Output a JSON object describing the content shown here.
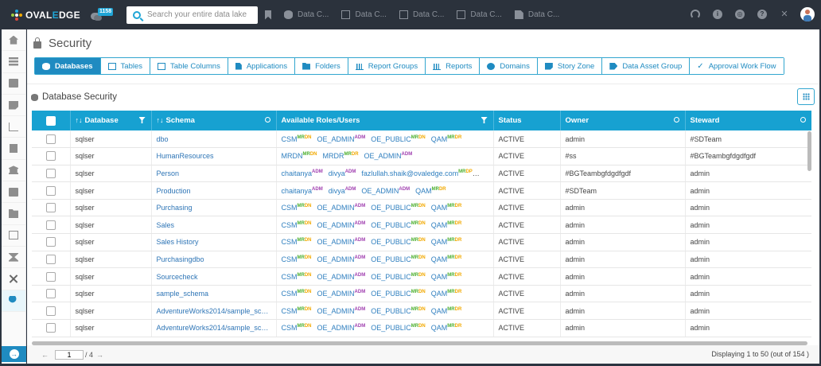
{
  "topbar": {
    "logo": {
      "prefix": "OVAL",
      "highlight": "E",
      "suffix": "DGE"
    },
    "notifications_badge": "1158",
    "search_placeholder": "Search your entire data lake",
    "recent_items": [
      {
        "icon": "database-icon",
        "label": "Data C..."
      },
      {
        "icon": "table-icon",
        "label": "Data C..."
      },
      {
        "icon": "table-columns-icon",
        "label": "Data C..."
      },
      {
        "icon": "report-icon",
        "label": "Data C..."
      },
      {
        "icon": "file-icon",
        "label": "Data C..."
      }
    ],
    "right_icons": [
      "headset-icon",
      "info-icon",
      "chrome-icon",
      "help-icon",
      "expand-icon",
      "user-avatar"
    ]
  },
  "sidebar": {
    "items": [
      "home-icon",
      "list-icon",
      "book-icon",
      "note-icon",
      "chart-icon",
      "clipboard-icon",
      "bank-icon",
      "id-card-icon",
      "folder-icon",
      "table-icon",
      "hourglass-icon",
      "tools-icon",
      "user-security-icon"
    ],
    "active": "user-security-icon",
    "expand_icon": "arrow-right-circle-icon"
  },
  "page": {
    "title": "Security",
    "tabs": [
      {
        "label": "Databases",
        "icon": "db",
        "active": true
      },
      {
        "label": "Tables",
        "icon": "grid"
      },
      {
        "label": "Table Columns",
        "icon": "grid"
      },
      {
        "label": "Applications",
        "icon": "doc"
      },
      {
        "label": "Folders",
        "icon": "folder"
      },
      {
        "label": "Report Groups",
        "icon": "bars"
      },
      {
        "label": "Reports",
        "icon": "bars"
      },
      {
        "label": "Domains",
        "icon": "globe"
      },
      {
        "label": "Story Zone",
        "icon": "story"
      },
      {
        "label": "Data Asset Group",
        "icon": "tag"
      },
      {
        "label": "Approval Work Flow",
        "icon": "check"
      }
    ],
    "section_title": "Database Security"
  },
  "table": {
    "columns": [
      {
        "label": "",
        "type": "checkbox"
      },
      {
        "label": "Database",
        "sortable": true,
        "action": "filter"
      },
      {
        "label": "Schema",
        "sortable": true,
        "action": "search"
      },
      {
        "label": "Available Roles/Users",
        "action": "filter"
      },
      {
        "label": "Status"
      },
      {
        "label": "Owner",
        "action": "search"
      },
      {
        "label": "Steward",
        "action": "search"
      }
    ],
    "sort_glyph": "↑↓",
    "rows": [
      {
        "database": "sqlser",
        "schema": "dbo",
        "roles": [
          [
            "CSM",
            "MR",
            "DN"
          ],
          [
            "OE_ADMIN",
            "",
            "ADM"
          ],
          [
            "OE_PUBLIC",
            "MR",
            "DN"
          ],
          [
            "QAM",
            "MR",
            "DR"
          ]
        ],
        "status": "ACTIVE",
        "owner": "admin",
        "steward": "#SDTeam"
      },
      {
        "database": "sqlser",
        "schema": "HumanResources",
        "roles": [
          [
            "MRDN",
            "MR",
            "DN"
          ],
          [
            "MRDR",
            "MR",
            "DR"
          ],
          [
            "OE_ADMIN",
            "",
            "ADM"
          ]
        ],
        "status": "ACTIVE",
        "owner": "#ss",
        "steward": "#BGTeambgfdgdfgdf"
      },
      {
        "database": "sqlser",
        "schema": "Person",
        "roles": [
          [
            "chaitanya",
            "",
            "ADM"
          ],
          [
            "divya",
            "",
            "ADM"
          ],
          [
            "fazlullah.shaik@ovaledge.com",
            "MR",
            "DP"
          ],
          [
            "OE_A...",
            "",
            ""
          ]
        ],
        "status": "ACTIVE",
        "owner": "#BGTeambgfdgdfgdf",
        "steward": "admin"
      },
      {
        "database": "sqlser",
        "schema": "Production",
        "roles": [
          [
            "chaitanya",
            "",
            "ADM"
          ],
          [
            "divya",
            "",
            "ADM"
          ],
          [
            "OE_ADMIN",
            "",
            "ADM"
          ],
          [
            "QAM",
            "MR",
            "DR"
          ]
        ],
        "status": "ACTIVE",
        "owner": "#SDTeam",
        "steward": "admin"
      },
      {
        "database": "sqlser",
        "schema": "Purchasing",
        "roles": [
          [
            "CSM",
            "MR",
            "DN"
          ],
          [
            "OE_ADMIN",
            "",
            "ADM"
          ],
          [
            "OE_PUBLIC",
            "MR",
            "DN"
          ],
          [
            "QAM",
            "MR",
            "DR"
          ]
        ],
        "status": "ACTIVE",
        "owner": "admin",
        "steward": "admin"
      },
      {
        "database": "sqlser",
        "schema": "Sales",
        "roles": [
          [
            "CSM",
            "MR",
            "DN"
          ],
          [
            "OE_ADMIN",
            "",
            "ADM"
          ],
          [
            "OE_PUBLIC",
            "MR",
            "DN"
          ],
          [
            "QAM",
            "MR",
            "DR"
          ]
        ],
        "status": "ACTIVE",
        "owner": "admin",
        "steward": "admin"
      },
      {
        "database": "sqlser",
        "schema": "Sales History",
        "roles": [
          [
            "CSM",
            "MR",
            "DN"
          ],
          [
            "OE_ADMIN",
            "",
            "ADM"
          ],
          [
            "OE_PUBLIC",
            "MR",
            "DN"
          ],
          [
            "QAM",
            "MR",
            "DR"
          ]
        ],
        "status": "ACTIVE",
        "owner": "admin",
        "steward": "admin"
      },
      {
        "database": "sqlser",
        "schema": "Purchasingdbo",
        "roles": [
          [
            "CSM",
            "MR",
            "DN"
          ],
          [
            "OE_ADMIN",
            "",
            "ADM"
          ],
          [
            "OE_PUBLIC",
            "MR",
            "DN"
          ],
          [
            "QAM",
            "MR",
            "DR"
          ]
        ],
        "status": "ACTIVE",
        "owner": "admin",
        "steward": "admin"
      },
      {
        "database": "sqlser",
        "schema": "Sourcecheck",
        "roles": [
          [
            "CSM",
            "MR",
            "DN"
          ],
          [
            "OE_ADMIN",
            "",
            "ADM"
          ],
          [
            "OE_PUBLIC",
            "MR",
            "DN"
          ],
          [
            "QAM",
            "MR",
            "DR"
          ]
        ],
        "status": "ACTIVE",
        "owner": "admin",
        "steward": "admin"
      },
      {
        "database": "sqlser",
        "schema": "sample_schema",
        "roles": [
          [
            "CSM",
            "MR",
            "DN"
          ],
          [
            "OE_ADMIN",
            "",
            "ADM"
          ],
          [
            "OE_PUBLIC",
            "MR",
            "DN"
          ],
          [
            "QAM",
            "MR",
            "DR"
          ]
        ],
        "status": "ACTIVE",
        "owner": "admin",
        "steward": "admin"
      },
      {
        "database": "sqlser",
        "schema": "AdventureWorks2014/sample_schema",
        "roles": [
          [
            "CSM",
            "MR",
            "DN"
          ],
          [
            "OE_ADMIN",
            "",
            "ADM"
          ],
          [
            "OE_PUBLIC",
            "MR",
            "DN"
          ],
          [
            "QAM",
            "MR",
            "DR"
          ]
        ],
        "status": "ACTIVE",
        "owner": "admin",
        "steward": "admin"
      },
      {
        "database": "sqlser",
        "schema": "AdventureWorks2014/sample_schem...",
        "roles": [
          [
            "CSM",
            "MR",
            "DN"
          ],
          [
            "OE_ADMIN",
            "",
            "ADM"
          ],
          [
            "OE_PUBLIC",
            "MR",
            "DN"
          ],
          [
            "QAM",
            "MR",
            "DR"
          ]
        ],
        "status": "ACTIVE",
        "owner": "admin",
        "steward": "admin"
      }
    ]
  },
  "pagination": {
    "prev": "←",
    "current_page": "1",
    "total_pages": "/ 4",
    "next": "→",
    "display_info": "Displaying 1 to 50 (out of 154 )"
  },
  "colors": {
    "accent": "#17a1d1",
    "topbar": "#2b323c",
    "role_link": "#2f7fbf",
    "perm_mr": "#4caf2f",
    "perm_dn": "#f2a900",
    "perm_adm": "#a03fb0"
  }
}
